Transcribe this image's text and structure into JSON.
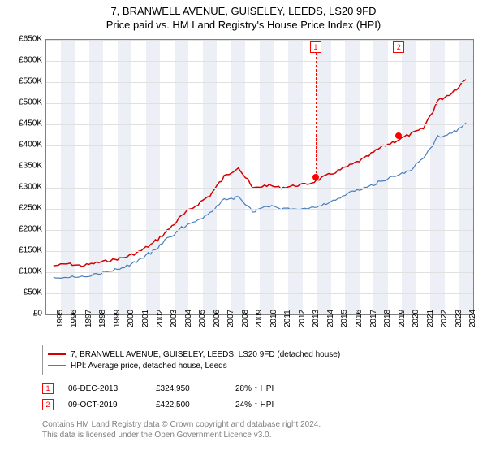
{
  "title_line1": "7, BRANWELL AVENUE, GUISELEY, LEEDS, LS20 9FD",
  "title_line2": "Price paid vs. HM Land Registry's House Price Index (HPI)",
  "chart": {
    "type": "line",
    "background_color": "#ffffff",
    "grid_color": "#e0e0e0",
    "border_color": "#808080",
    "band_color": "#ecf0f6",
    "ylim": [
      0,
      650000
    ],
    "ytick_step": 50000,
    "y_labels": [
      "£0",
      "£50K",
      "£100K",
      "£150K",
      "£200K",
      "£250K",
      "£300K",
      "£350K",
      "£400K",
      "£450K",
      "£500K",
      "£550K",
      "£600K",
      "£650K"
    ],
    "x_years": [
      1995,
      1996,
      1997,
      1998,
      1999,
      2000,
      2001,
      2002,
      2003,
      2004,
      2005,
      2006,
      2007,
      2008,
      2009,
      2010,
      2011,
      2012,
      2013,
      2014,
      2015,
      2016,
      2017,
      2018,
      2019,
      2020,
      2021,
      2022,
      2023,
      2024
    ],
    "series": [
      {
        "name": "7, BRANWELL AVENUE, GUISELEY, LEEDS, LS20 9FD (detached house)",
        "color": "#d40000",
        "line_width": 1.5,
        "values": [
          115000,
          120000,
          115000,
          122000,
          128000,
          135000,
          148000,
          168000,
          198000,
          232000,
          258000,
          282000,
          325000,
          350000,
          298000,
          306000,
          300000,
          305000,
          310000,
          325000,
          340000,
          355000,
          372000,
          395000,
          410000,
          425000,
          440000,
          505000,
          525000,
          558000
        ]
      },
      {
        "name": "HPI: Average price, detached house, Leeds",
        "color": "#4a7ebb",
        "line_width": 1.2,
        "values": [
          88000,
          88000,
          90000,
          95000,
          102000,
          112000,
          128000,
          150000,
          178000,
          205000,
          222000,
          240000,
          270000,
          278000,
          242000,
          258000,
          250000,
          250000,
          252000,
          260000,
          275000,
          290000,
          300000,
          315000,
          328000,
          340000,
          368000,
          420000,
          430000,
          450000
        ]
      }
    ],
    "markers": [
      {
        "num": "1",
        "year": 2013.93,
        "y_value": 324950,
        "line_color": "#ff0000"
      },
      {
        "num": "2",
        "year": 2019.77,
        "y_value": 422500,
        "line_color": "#ff0000"
      }
    ]
  },
  "legend_items": [
    {
      "color": "#d40000",
      "label": "7, BRANWELL AVENUE, GUISELEY, LEEDS, LS20 9FD (detached house)"
    },
    {
      "color": "#4a7ebb",
      "label": "HPI: Average price, detached house, Leeds"
    }
  ],
  "sales": [
    {
      "num": "1",
      "date": "06-DEC-2013",
      "price": "£324,950",
      "delta": "28% ↑ HPI"
    },
    {
      "num": "2",
      "date": "09-OCT-2019",
      "price": "£422,500",
      "delta": "24% ↑ HPI"
    }
  ],
  "footnote_line1": "Contains HM Land Registry data © Crown copyright and database right 2024.",
  "footnote_line2": "This data is licensed under the Open Government Licence v3.0."
}
